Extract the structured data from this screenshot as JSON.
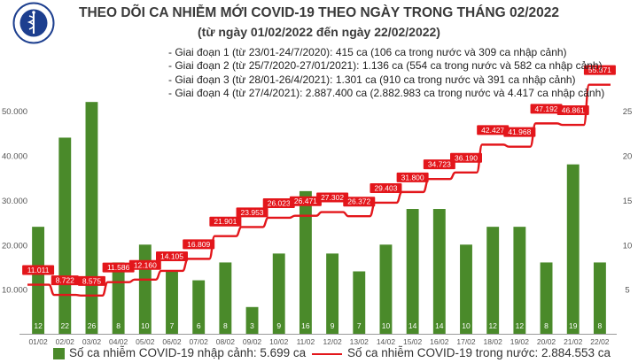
{
  "header": {
    "logo_text": "BỘ Y TẾ · MINISTRY OF HEALTH",
    "title": "THEO DÕI CA NHIỄM MỚI COVID-19 THEO NGÀY TRONG THÁNG 02/2022",
    "subtitle": "(từ ngày 01/02/2022 đến ngày 22/02/2022)"
  },
  "phases": [
    "- Giai đoạn 1 (từ 23/01-24/7/2020): 415 ca (106 ca trong nước và 309 ca nhập cảnh)",
    "- Giai đoạn 2 (từ 25/7/2020-27/01/2021): 1.136 ca (554 ca trong nước và 582 ca nhập cảnh)",
    "- Giai đoạn 3 (từ 28/01-26/4/2021): 1.301 ca (910 ca trong nước và 391 ca nhập cảnh)",
    "- Giai đoạn 4 (từ 27/4/2021): 2.887.400 ca (2.882.983 ca trong nước và 4.417 ca nhập cảnh)"
  ],
  "legend": {
    "bar_label": "Số ca nhiễm COVID-19 nhập cảnh: 5.699 ca",
    "line_label": "Số ca nhiễm COVID-19 trong nước: 2.884.553 ca"
  },
  "colors": {
    "bar": "#4a8a2a",
    "bar_label_text": "#ffffff",
    "line": "#e3161b",
    "data_label_bg": "#e3161b",
    "data_label_text": "#ffffff",
    "axis_text": "#555555"
  },
  "chart_data": {
    "type": "bar",
    "categories": [
      "01/02",
      "02/02",
      "03/02",
      "04/02",
      "05/02",
      "06/02",
      "07/02",
      "08/02",
      "09/02",
      "10/02",
      "11/02",
      "12/02",
      "13/02",
      "14/02",
      "15/02",
      "16/02",
      "17/02",
      "18/02",
      "19/02",
      "20/02",
      "21/02",
      "22/02"
    ],
    "left_axis": {
      "ticks": [
        "10.000",
        "20.000",
        "30.000",
        "40.000",
        "50.000"
      ],
      "tick_values": [
        10000,
        20000,
        30000,
        40000,
        50000
      ],
      "ylim": [
        0,
        57000
      ]
    },
    "right_axis": {
      "ticks": [
        "5",
        "10",
        "15",
        "20",
        "25"
      ],
      "tick_values": [
        5,
        10,
        15,
        20,
        25
      ],
      "ylim": [
        0,
        28.5
      ]
    },
    "series": [
      {
        "axis": "right",
        "type": "bar",
        "values": [
          12,
          22,
          26,
          8,
          10,
          7,
          6,
          8,
          3,
          9,
          16,
          9,
          7,
          10,
          14,
          14,
          10,
          12,
          12,
          8,
          19,
          8
        ],
        "labels": [
          "12",
          "22",
          "26",
          "8",
          "10",
          "7",
          "6",
          "8",
          "3",
          "9",
          "16",
          "9",
          "7",
          "10",
          "14",
          "14",
          "10",
          "12",
          "12",
          "8",
          "19",
          "8"
        ]
      },
      {
        "axis": "left",
        "type": "line",
        "values": [
          11011,
          8722,
          8575,
          11586,
          12160,
          14105,
          16809,
          21901,
          23953,
          26023,
          26471,
          27302,
          26372,
          29403,
          31800,
          34723,
          36190,
          42427,
          41968,
          47192,
          46861,
          55871
        ],
        "labels": [
          "11.011",
          "8.722",
          "8.575",
          "11.586",
          "12.160",
          "14.105",
          "16.809",
          "21.901",
          "23.953",
          "26.023",
          "26.471",
          "27.302",
          "26.372",
          "29.403",
          "31.800",
          "34.723",
          "36.190",
          "42.427",
          "41.968",
          "47.192",
          "46.861",
          "55.871"
        ]
      }
    ],
    "grid": false
  }
}
